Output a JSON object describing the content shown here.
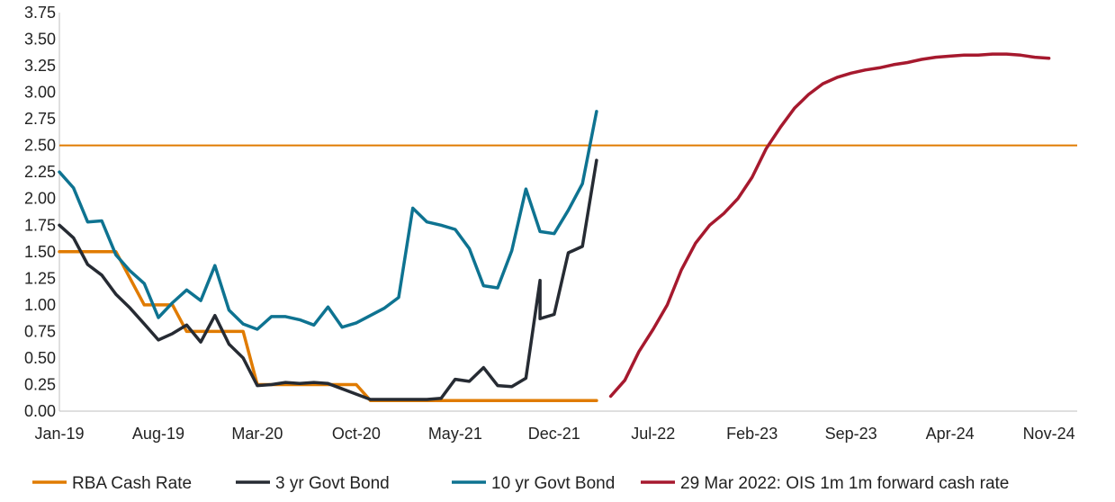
{
  "chart_data": {
    "type": "line",
    "x_tick_labels": [
      "Jan-19",
      "Aug-19",
      "Mar-20",
      "Oct-20",
      "May-21",
      "Dec-21",
      "Jul-22",
      "Feb-23",
      "Sep-23",
      "Apr-24",
      "Nov-24"
    ],
    "y_tick_labels": [
      "0.00",
      "0.25",
      "0.50",
      "0.75",
      "1.00",
      "1.25",
      "1.50",
      "1.75",
      "2.00",
      "2.25",
      "2.50",
      "2.75",
      "3.00",
      "3.25",
      "3.50",
      "3.75"
    ],
    "ylim": [
      0,
      3.75
    ],
    "x_axis_months": [
      0,
      72
    ],
    "gridlines": false,
    "legend_position": "bottom",
    "reference_line": {
      "value": 2.5,
      "color": "#E07B00"
    },
    "series": [
      {
        "name": "RBA Cash Rate",
        "color": "#E07B00",
        "points": [
          [
            "Jan-19",
            1.5
          ],
          [
            "May-19",
            1.5
          ],
          [
            "Jun-19",
            1.25
          ],
          [
            "Jul-19",
            1.0
          ],
          [
            "Sep-19",
            1.0
          ],
          [
            "Oct-19",
            0.75
          ],
          [
            "Feb-20",
            0.75
          ],
          [
            "Mar-20",
            0.25
          ],
          [
            "Oct-20",
            0.25
          ],
          [
            "Nov-20",
            0.1
          ],
          [
            "Mar-22",
            0.1
          ]
        ]
      },
      {
        "name": "3 yr Govt Bond",
        "color": "#262B33",
        "points": [
          [
            "Jan-19",
            1.75
          ],
          [
            "Feb-19",
            1.63
          ],
          [
            "Mar-19",
            1.38
          ],
          [
            "Apr-19",
            1.28
          ],
          [
            "May-19",
            1.1
          ],
          [
            "Jun-19",
            0.97
          ],
          [
            "Jul-19",
            0.82
          ],
          [
            "Aug-19",
            0.67
          ],
          [
            "Sep-19",
            0.73
          ],
          [
            "Oct-19",
            0.81
          ],
          [
            "Nov-19",
            0.65
          ],
          [
            "Dec-19",
            0.9
          ],
          [
            "Jan-20",
            0.63
          ],
          [
            "Feb-20",
            0.5
          ],
          [
            "Mar-20",
            0.24
          ],
          [
            "Apr-20",
            0.25
          ],
          [
            "May-20",
            0.27
          ],
          [
            "Jun-20",
            0.26
          ],
          [
            "Jul-20",
            0.27
          ],
          [
            "Aug-20",
            0.26
          ],
          [
            "Sep-20",
            0.21
          ],
          [
            "Oct-20",
            0.16
          ],
          [
            "Nov-20",
            0.11
          ],
          [
            "Dec-20",
            0.11
          ],
          [
            "Jan-21",
            0.11
          ],
          [
            "Feb-21",
            0.11
          ],
          [
            "Mar-21",
            0.11
          ],
          [
            "Apr-21",
            0.12
          ],
          [
            "May-21",
            0.3
          ],
          [
            "Jun-21",
            0.28
          ],
          [
            "Jul-21",
            0.41
          ],
          [
            "Aug-21",
            0.24
          ],
          [
            "Sep-21",
            0.23
          ],
          [
            "Oct-21",
            0.31
          ],
          [
            "Nov-21",
            1.23
          ],
          [
            "Nov-21",
            0.87
          ],
          [
            "Dec-21",
            0.91
          ],
          [
            "Jan-22",
            1.49
          ],
          [
            "Feb-22",
            1.55
          ],
          [
            "Mar-22",
            2.36
          ]
        ]
      },
      {
        "name": "10 yr Govt Bond",
        "color": "#0E7391",
        "points": [
          [
            "Jan-19",
            2.25
          ],
          [
            "Feb-19",
            2.1
          ],
          [
            "Mar-19",
            1.78
          ],
          [
            "Apr-19",
            1.79
          ],
          [
            "May-19",
            1.47
          ],
          [
            "Jun-19",
            1.32
          ],
          [
            "Jul-19",
            1.2
          ],
          [
            "Aug-19",
            0.88
          ],
          [
            "Sep-19",
            1.02
          ],
          [
            "Oct-19",
            1.14
          ],
          [
            "Nov-19",
            1.04
          ],
          [
            "Dec-19",
            1.37
          ],
          [
            "Jan-20",
            0.95
          ],
          [
            "Feb-20",
            0.82
          ],
          [
            "Mar-20",
            0.77
          ],
          [
            "Apr-20",
            0.89
          ],
          [
            "May-20",
            0.89
          ],
          [
            "Jun-20",
            0.86
          ],
          [
            "Jul-20",
            0.81
          ],
          [
            "Aug-20",
            0.98
          ],
          [
            "Sep-20",
            0.79
          ],
          [
            "Oct-20",
            0.83
          ],
          [
            "Nov-20",
            0.9
          ],
          [
            "Dec-20",
            0.97
          ],
          [
            "Jan-21",
            1.07
          ],
          [
            "Feb-21",
            1.91
          ],
          [
            "Mar-21",
            1.78
          ],
          [
            "Apr-21",
            1.75
          ],
          [
            "May-21",
            1.71
          ],
          [
            "Jun-21",
            1.53
          ],
          [
            "Jul-21",
            1.18
          ],
          [
            "Aug-21",
            1.16
          ],
          [
            "Sep-21",
            1.51
          ],
          [
            "Oct-21",
            2.09
          ],
          [
            "Nov-21",
            1.69
          ],
          [
            "Dec-21",
            1.67
          ],
          [
            "Jan-22",
            1.89
          ],
          [
            "Feb-22",
            2.14
          ],
          [
            "Mar-22",
            2.82
          ]
        ]
      },
      {
        "name": "29 Mar 2022: OIS 1m 1m forward cash rate",
        "color": "#A6192E",
        "points": [
          [
            "Apr-22",
            0.14
          ],
          [
            "May-22",
            0.29
          ],
          [
            "Jun-22",
            0.56
          ],
          [
            "Jul-22",
            0.77
          ],
          [
            "Aug-22",
            1.0
          ],
          [
            "Sep-22",
            1.33
          ],
          [
            "Oct-22",
            1.58
          ],
          [
            "Nov-22",
            1.75
          ],
          [
            "Dec-22",
            1.86
          ],
          [
            "Jan-23",
            2.0
          ],
          [
            "Feb-23",
            2.2
          ],
          [
            "Mar-23",
            2.47
          ],
          [
            "Apr-23",
            2.67
          ],
          [
            "May-23",
            2.85
          ],
          [
            "Jun-23",
            2.98
          ],
          [
            "Jul-23",
            3.08
          ],
          [
            "Aug-23",
            3.14
          ],
          [
            "Sep-23",
            3.18
          ],
          [
            "Oct-23",
            3.21
          ],
          [
            "Nov-23",
            3.23
          ],
          [
            "Dec-23",
            3.26
          ],
          [
            "Jan-24",
            3.28
          ],
          [
            "Feb-24",
            3.31
          ],
          [
            "Mar-24",
            3.33
          ],
          [
            "Apr-24",
            3.34
          ],
          [
            "May-24",
            3.35
          ],
          [
            "Jun-24",
            3.35
          ],
          [
            "Jul-24",
            3.36
          ],
          [
            "Aug-24",
            3.36
          ],
          [
            "Sep-24",
            3.35
          ],
          [
            "Oct-24",
            3.33
          ],
          [
            "Nov-24",
            3.32
          ]
        ]
      }
    ]
  }
}
